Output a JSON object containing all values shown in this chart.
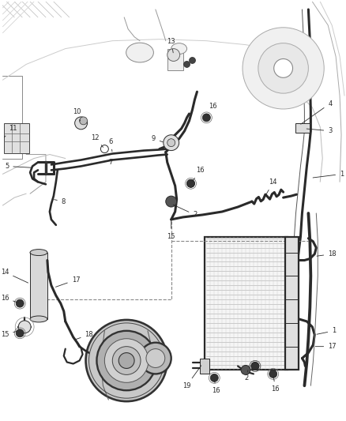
{
  "bg_color": "#ffffff",
  "line_color": "#2a2a2a",
  "fig_width": 4.38,
  "fig_height": 5.33,
  "dpi": 100,
  "label_fs": 6.0,
  "lw_main": 1.6,
  "lw_thin": 0.7,
  "lw_thick": 2.2,
  "gray_bg": "#d8d8d8",
  "gray_mid": "#aaaaaa",
  "gray_dark": "#555555"
}
